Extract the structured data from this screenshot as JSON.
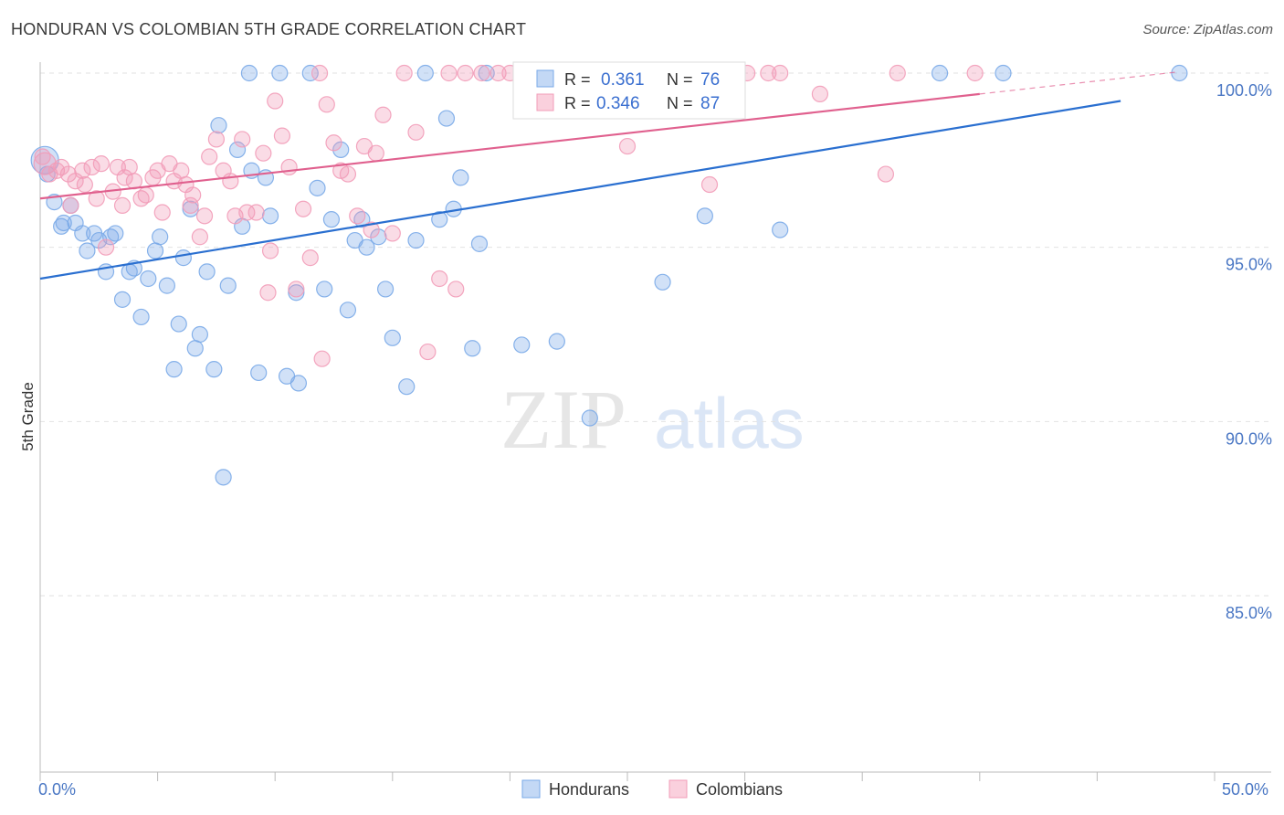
{
  "title": "HONDURAN VS COLOMBIAN 5TH GRADE CORRELATION CHART",
  "source": "Source: ZipAtlas.com",
  "watermark": {
    "zip": "ZIP",
    "atlas": "atlas"
  },
  "legend": {
    "hondurans": {
      "r_label": "R =",
      "r_value": "0.361",
      "n_label": "N =",
      "n_value": "76"
    },
    "colombians": {
      "r_label": "R =",
      "r_value": "0.346",
      "n_label": "N =",
      "n_value": "87"
    }
  },
  "colors": {
    "hondurans": "#7aaae8",
    "hondurans_line": "#2a6fd0",
    "colombians": "#f29cb8",
    "colombians_line": "#e0608e"
  },
  "chart_data": {
    "type": "scatter",
    "title": "HONDURAN VS COLOMBIAN 5TH GRADE CORRELATION CHART",
    "xlabel": "",
    "ylabel": "5th Grade",
    "xlim": [
      0,
      50
    ],
    "ylim": [
      80.5,
      100.7
    ],
    "x_tick_labels": [
      "0.0%",
      "50.0%"
    ],
    "y_ticks": [
      85,
      90,
      95,
      100
    ],
    "y_tick_labels": [
      "85.0%",
      "90.0%",
      "95.0%",
      "100.0%"
    ],
    "series": [
      {
        "name": "Hondurans",
        "trend": {
          "x": [
            0,
            46
          ],
          "y": [
            94.1,
            99.2
          ]
        },
        "points": [
          [
            0.2,
            97.5
          ],
          [
            0.3,
            97.1
          ],
          [
            0.6,
            96.3
          ],
          [
            0.9,
            95.6
          ],
          [
            1.0,
            95.7
          ],
          [
            1.3,
            96.2
          ],
          [
            1.5,
            95.7
          ],
          [
            1.8,
            95.4
          ],
          [
            2.0,
            94.9
          ],
          [
            2.3,
            95.4
          ],
          [
            2.5,
            95.2
          ],
          [
            2.8,
            94.3
          ],
          [
            3.0,
            95.3
          ],
          [
            3.2,
            95.4
          ],
          [
            3.5,
            93.5
          ],
          [
            3.8,
            94.3
          ],
          [
            4.0,
            94.4
          ],
          [
            4.3,
            93.0
          ],
          [
            4.6,
            94.1
          ],
          [
            4.9,
            94.9
          ],
          [
            5.1,
            95.3
          ],
          [
            5.4,
            93.9
          ],
          [
            5.7,
            91.5
          ],
          [
            5.9,
            92.8
          ],
          [
            6.1,
            94.7
          ],
          [
            6.4,
            96.1
          ],
          [
            6.6,
            92.1
          ],
          [
            6.8,
            92.5
          ],
          [
            7.1,
            94.3
          ],
          [
            7.4,
            91.5
          ],
          [
            7.6,
            98.5
          ],
          [
            7.8,
            88.4
          ],
          [
            8.0,
            93.9
          ],
          [
            8.4,
            97.8
          ],
          [
            8.6,
            95.6
          ],
          [
            8.9,
            100.0
          ],
          [
            9.0,
            97.2
          ],
          [
            9.3,
            91.4
          ],
          [
            9.6,
            97.0
          ],
          [
            9.8,
            95.9
          ],
          [
            10.2,
            100.0
          ],
          [
            10.5,
            91.3
          ],
          [
            10.9,
            93.7
          ],
          [
            11.0,
            91.1
          ],
          [
            11.5,
            100.0
          ],
          [
            11.8,
            96.7
          ],
          [
            12.1,
            93.8
          ],
          [
            12.4,
            95.8
          ],
          [
            12.8,
            97.8
          ],
          [
            13.1,
            93.2
          ],
          [
            13.4,
            95.2
          ],
          [
            13.7,
            95.8
          ],
          [
            13.9,
            95.0
          ],
          [
            14.4,
            95.3
          ],
          [
            14.7,
            93.8
          ],
          [
            15.0,
            92.4
          ],
          [
            15.6,
            91.0
          ],
          [
            16.0,
            95.2
          ],
          [
            16.4,
            100.0
          ],
          [
            17.0,
            95.8
          ],
          [
            17.3,
            98.7
          ],
          [
            17.6,
            96.1
          ],
          [
            17.9,
            97.0
          ],
          [
            18.4,
            92.1
          ],
          [
            18.7,
            95.1
          ],
          [
            19.0,
            100.0
          ],
          [
            20.5,
            92.2
          ],
          [
            22.0,
            92.3
          ],
          [
            23.4,
            90.1
          ],
          [
            26.5,
            94.0
          ],
          [
            27.6,
            100.0
          ],
          [
            28.3,
            95.9
          ],
          [
            31.5,
            95.5
          ],
          [
            38.3,
            100.0
          ],
          [
            41.0,
            100.0
          ],
          [
            48.5,
            100.0
          ]
        ]
      },
      {
        "name": "Colombians",
        "trend": {
          "x": [
            0,
            40
          ],
          "y": [
            96.4,
            99.4
          ]
        },
        "points": [
          [
            0.2,
            97.4
          ],
          [
            0.4,
            97.1
          ],
          [
            0.7,
            97.2
          ],
          [
            0.9,
            97.3
          ],
          [
            1.2,
            97.1
          ],
          [
            1.3,
            96.2
          ],
          [
            1.5,
            96.9
          ],
          [
            1.8,
            97.2
          ],
          [
            1.9,
            96.8
          ],
          [
            2.2,
            97.3
          ],
          [
            2.4,
            96.4
          ],
          [
            2.6,
            97.4
          ],
          [
            2.8,
            95.0
          ],
          [
            3.1,
            96.6
          ],
          [
            3.3,
            97.3
          ],
          [
            3.5,
            96.2
          ],
          [
            3.8,
            97.3
          ],
          [
            4.0,
            96.9
          ],
          [
            4.3,
            96.4
          ],
          [
            4.5,
            96.5
          ],
          [
            4.8,
            97.0
          ],
          [
            5.0,
            97.2
          ],
          [
            5.2,
            96.0
          ],
          [
            5.5,
            97.4
          ],
          [
            5.7,
            96.9
          ],
          [
            6.0,
            97.2
          ],
          [
            6.2,
            96.8
          ],
          [
            6.5,
            96.5
          ],
          [
            6.8,
            95.3
          ],
          [
            7.0,
            95.9
          ],
          [
            7.2,
            97.6
          ],
          [
            7.5,
            98.1
          ],
          [
            7.8,
            97.2
          ],
          [
            8.1,
            96.9
          ],
          [
            8.3,
            95.9
          ],
          [
            8.6,
            98.1
          ],
          [
            8.8,
            96.0
          ],
          [
            9.2,
            96.0
          ],
          [
            9.5,
            97.7
          ],
          [
            9.8,
            94.9
          ],
          [
            10.0,
            99.2
          ],
          [
            10.3,
            98.2
          ],
          [
            10.6,
            97.3
          ],
          [
            10.9,
            93.8
          ],
          [
            11.2,
            96.1
          ],
          [
            11.5,
            94.7
          ],
          [
            11.9,
            100.0
          ],
          [
            12.2,
            99.1
          ],
          [
            12.5,
            98.0
          ],
          [
            12.8,
            97.2
          ],
          [
            13.1,
            97.1
          ],
          [
            13.5,
            95.9
          ],
          [
            13.8,
            97.9
          ],
          [
            14.1,
            95.5
          ],
          [
            14.6,
            98.8
          ],
          [
            15.0,
            95.4
          ],
          [
            15.5,
            100.0
          ],
          [
            16.0,
            98.3
          ],
          [
            16.5,
            92.0
          ],
          [
            17.0,
            94.1
          ],
          [
            17.4,
            100.0
          ],
          [
            17.7,
            93.8
          ],
          [
            18.1,
            100.0
          ],
          [
            18.8,
            100.0
          ],
          [
            19.5,
            100.0
          ],
          [
            20.0,
            100.0
          ],
          [
            21.0,
            100.0
          ],
          [
            22.0,
            100.0
          ],
          [
            23.5,
            100.0
          ],
          [
            24.0,
            100.0
          ],
          [
            25.0,
            97.9
          ],
          [
            27.0,
            100.0
          ],
          [
            28.5,
            96.8
          ],
          [
            29.0,
            100.0
          ],
          [
            30.1,
            100.0
          ],
          [
            31.0,
            100.0
          ],
          [
            31.5,
            100.0
          ],
          [
            33.2,
            99.4
          ],
          [
            36.0,
            97.1
          ],
          [
            36.5,
            100.0
          ],
          [
            39.8,
            100.0
          ],
          [
            0.1,
            97.6
          ],
          [
            3.6,
            97.0
          ],
          [
            6.4,
            96.2
          ],
          [
            9.7,
            93.7
          ],
          [
            12.0,
            91.8
          ],
          [
            14.3,
            97.7
          ]
        ]
      }
    ]
  },
  "bottom_legend": [
    "Hondurans",
    "Colombians"
  ]
}
